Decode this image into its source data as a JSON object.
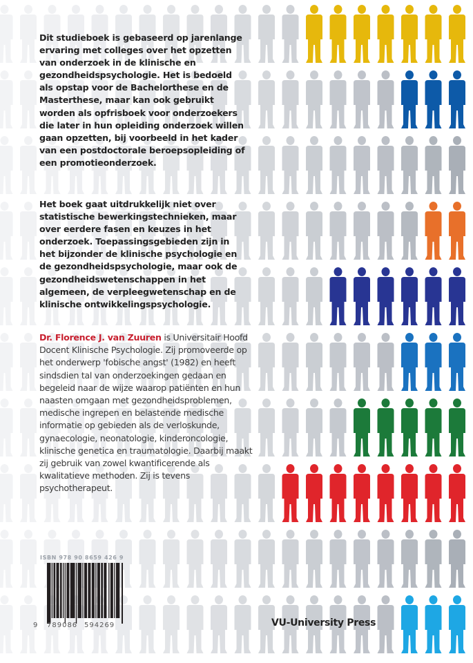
{
  "paragraphs": {
    "p1": "Dit studieboek is gebaseerd op jarenlange ervaring met colleges over het opzetten van onderzoek in de klinische en gezondheidspsychologie. Het is bedoeld als opstap voor de Bachelorthese en de Masterthese, maar kan ook gebruikt worden als opfrisboek voor onderzoekers die later in hun opleiding onderzoek willen gaan opzetten, bij voorbeeld in het kader van een postdoctorale beroepsopleiding of een promotieonderzoek.",
    "p2": "Het boek gaat uitdrukkelijk niet over statistische bewerkingstechnieken, maar over eerdere fasen en keuzes in het onderzoek. Toepassingsgebieden zijn in het bijzonder de klinische psychologie en de gezondheidspsychologie, maar ook de gezondheidswetenschappen in het algemeen, de verpleegwetenschap en de klinische ontwikkelingspsychologie.",
    "author_name": "Dr. Florence J. van Zuuren",
    "author_bio": " is Universitair Hoofd Docent Klinische Psychologie. Zij promoveerde op het onderwerp 'fobische angst' (1982) en heeft sindsdien tal van onderzoekingen gedaan en begeleid naar de wijze waarop patiënten en hun naasten omgaan met gezondheidsproblemen, medische ingrepen en belastende medische informatie op gebieden als de verloskunde, gynaecologie, neonatologie, kinderoncologie, klinische genetica en traumatologie. Daarbij maakt zij gebruik van zowel kwantificerende als kwalitatieve methoden. Zij is tevens psychotherapeut."
  },
  "isbn_label": "ISBN 978 90 8659 426 9",
  "barcode_digits": {
    "first": "9",
    "left": "789086",
    "right": "594269"
  },
  "publisher": "VU-University Press",
  "colors": {
    "author": "#c8202f",
    "grey_light": "#f2f3f5",
    "grey_dark": "#a9afb7"
  },
  "figure_rows": [
    {
      "colored": 7,
      "color": "#e6b80c"
    },
    {
      "colored": 3,
      "color": "#0d5aa8"
    },
    {
      "colored": 0,
      "color": ""
    },
    {
      "colored": 2,
      "color": "#e8702a"
    },
    {
      "colored": 6,
      "color": "#283593"
    },
    {
      "colored": 3,
      "color": "#1a72c0"
    },
    {
      "colored": 5,
      "color": "#1c7a3a"
    },
    {
      "colored": 8,
      "color": "#e0252b"
    },
    {
      "colored": 0,
      "color": ""
    },
    {
      "colored": 3,
      "color": "#1ea7e4"
    }
  ]
}
